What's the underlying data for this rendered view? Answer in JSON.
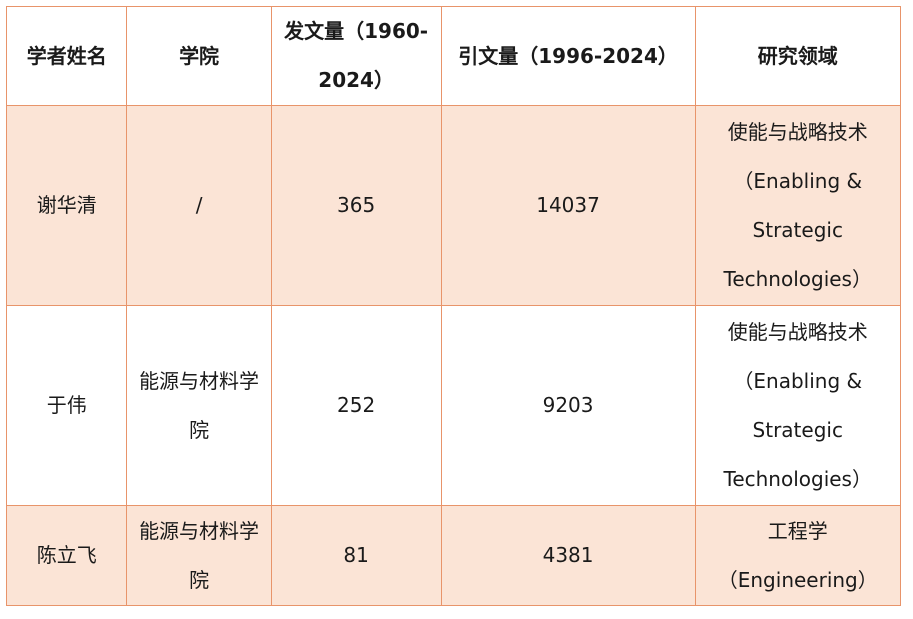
{
  "table": {
    "headers": {
      "name": "学者姓名",
      "college": "学院",
      "pubs": "发文量（1960-2024）",
      "cites": "引文量（1996-2024）",
      "field": "研究领域"
    },
    "rows": [
      {
        "name": "谢华清",
        "college": "/",
        "pubs": "365",
        "cites": "14037",
        "field_lines": [
          "使能与战略技术",
          "（Enabling &",
          "Strategic",
          "Technologies）"
        ]
      },
      {
        "name": "于伟",
        "college": "能源与材料学院",
        "pubs": "252",
        "cites": "9203",
        "field_lines": [
          "使能与战略技术",
          "（Enabling &",
          "Strategic",
          "Technologies）"
        ]
      },
      {
        "name": "陈立飞",
        "college": "能源与材料学院",
        "pubs": "81",
        "cites": "4381",
        "field_lines": [
          "工程学",
          "（Engineering）"
        ]
      }
    ]
  }
}
